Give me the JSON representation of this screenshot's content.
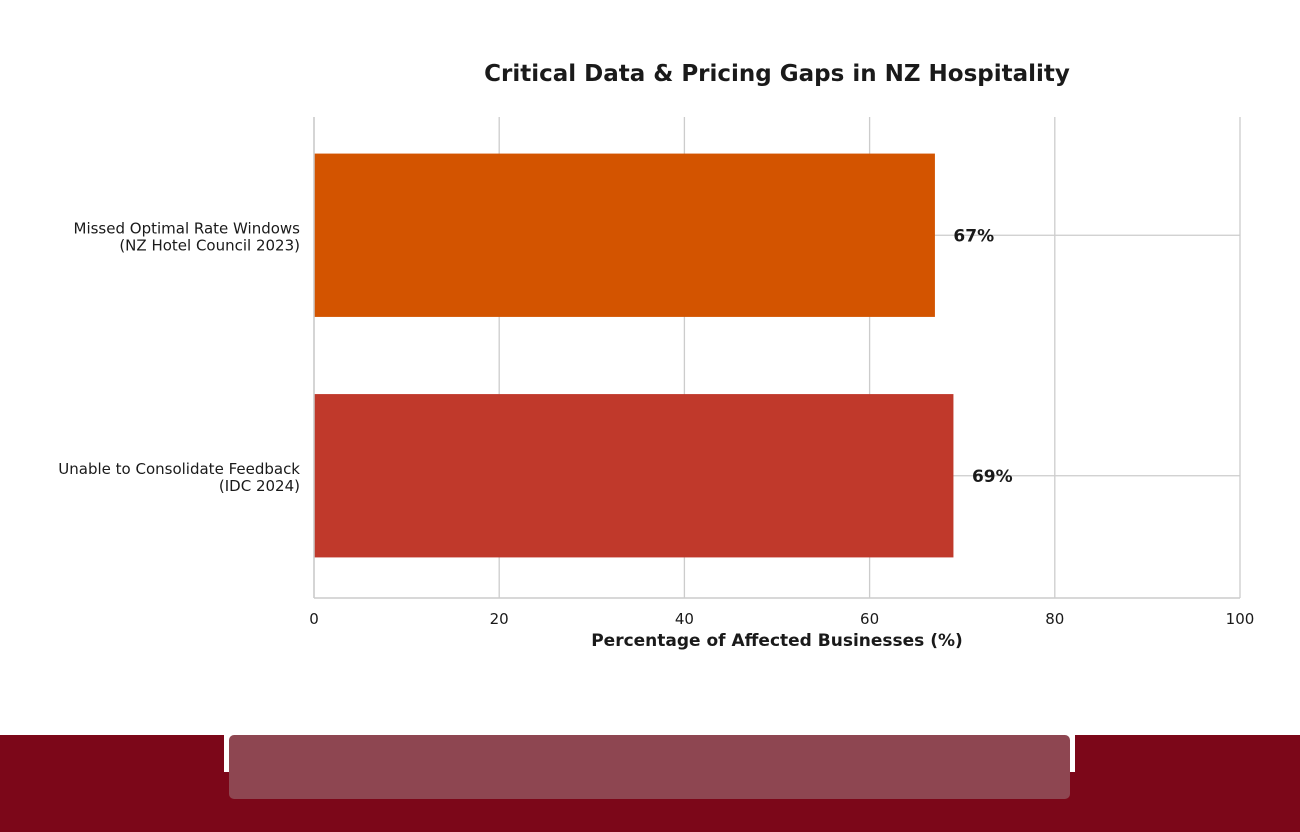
{
  "chart_data": {
    "type": "bar",
    "orientation": "horizontal",
    "title": "Critical Data & Pricing Gaps in NZ Hospitality",
    "xlabel": "Percentage of Affected Businesses (%)",
    "ylabel": "",
    "xlim": [
      0,
      100
    ],
    "xticks": [
      "0",
      "20",
      "40",
      "60",
      "80",
      "100"
    ],
    "grid": true,
    "categories": [
      {
        "line1": "Missed Optimal Rate Windows",
        "line2": "(NZ Hotel Council 2023)"
      },
      {
        "line1": "Unable to Consolidate Feedback",
        "line2": "(IDC 2024)"
      }
    ],
    "values": [
      67,
      69
    ],
    "value_labels": [
      "67%",
      "69%"
    ],
    "colors": [
      "#d35400",
      "#c0392b"
    ]
  },
  "colors": {
    "footer_bar": "#7c0719",
    "footer_pill": "#8e4651",
    "grid": "#cccccc",
    "text": "#1a1a1a"
  }
}
